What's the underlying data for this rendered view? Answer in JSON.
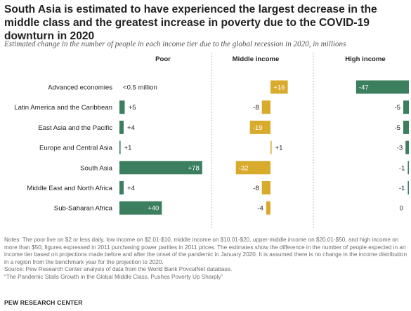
{
  "title": "South Asia is estimated to have experienced the largest decrease in the middle class and the greatest increase in poverty due to the COVID-19 downturn in 2020",
  "subtitle": "Estimated change in the number of people in each income tier due to the global recession in 2020, in millions",
  "colors": {
    "poor": "#3b7f5e",
    "middle": "#d9ab2c",
    "high": "#3b7f5e",
    "text": "#222222",
    "divider": "#bbbbbb"
  },
  "chart_data": {
    "type": "bar",
    "orientation": "horizontal",
    "categories": [
      "Advanced economies",
      "Latin America and the Caribbean",
      "East Asia and the Pacific",
      "Europe and Central Asia",
      "South Asia",
      "Middle East and North Africa",
      "Sub-Saharan Africa"
    ],
    "series": [
      {
        "name": "Poor",
        "values": [
          0,
          5,
          4,
          1,
          78,
          4,
          40
        ],
        "labels": [
          "<0.5 million",
          "+5",
          "+4",
          "+1",
          "+78",
          "+4",
          "+40"
        ]
      },
      {
        "name": "Middle income",
        "values": [
          16,
          -8,
          -19,
          1,
          -32,
          -8,
          -4
        ],
        "labels": [
          "+16",
          "-8",
          "-19",
          "+1",
          "-32",
          "-8",
          "-4"
        ]
      },
      {
        "name": "High income",
        "values": [
          -47,
          -5,
          -5,
          -3,
          -1,
          -1,
          0
        ],
        "labels": [
          "-47",
          "-5",
          "-5",
          "-3",
          "-1",
          "-1",
          "0"
        ]
      }
    ]
  },
  "notes": [
    "Notes: The poor live on $2 or less daily, low income on $2.01-$10, middle income on $10.01-$20, upper-middle income on $20.01-$50, and high income on more than $50; figures expressed in 2011 purchasing power parities in 2011 prices. The estimates show the difference in the number of people expected in an income tier based on projections made before and after the onset of the pandemic in January 2020. It is assumed there is no change in the income distribution in a region from the benchmark year for the projection to 2020.",
    "Source: Pew Research Center analysis of data from the World Bank PovcalNet database.",
    "“The Pandemic Stalls Growth in the Global Middle Class, Pushes Poverty Up Sharply”"
  ],
  "brand": "PEW RESEARCH CENTER"
}
